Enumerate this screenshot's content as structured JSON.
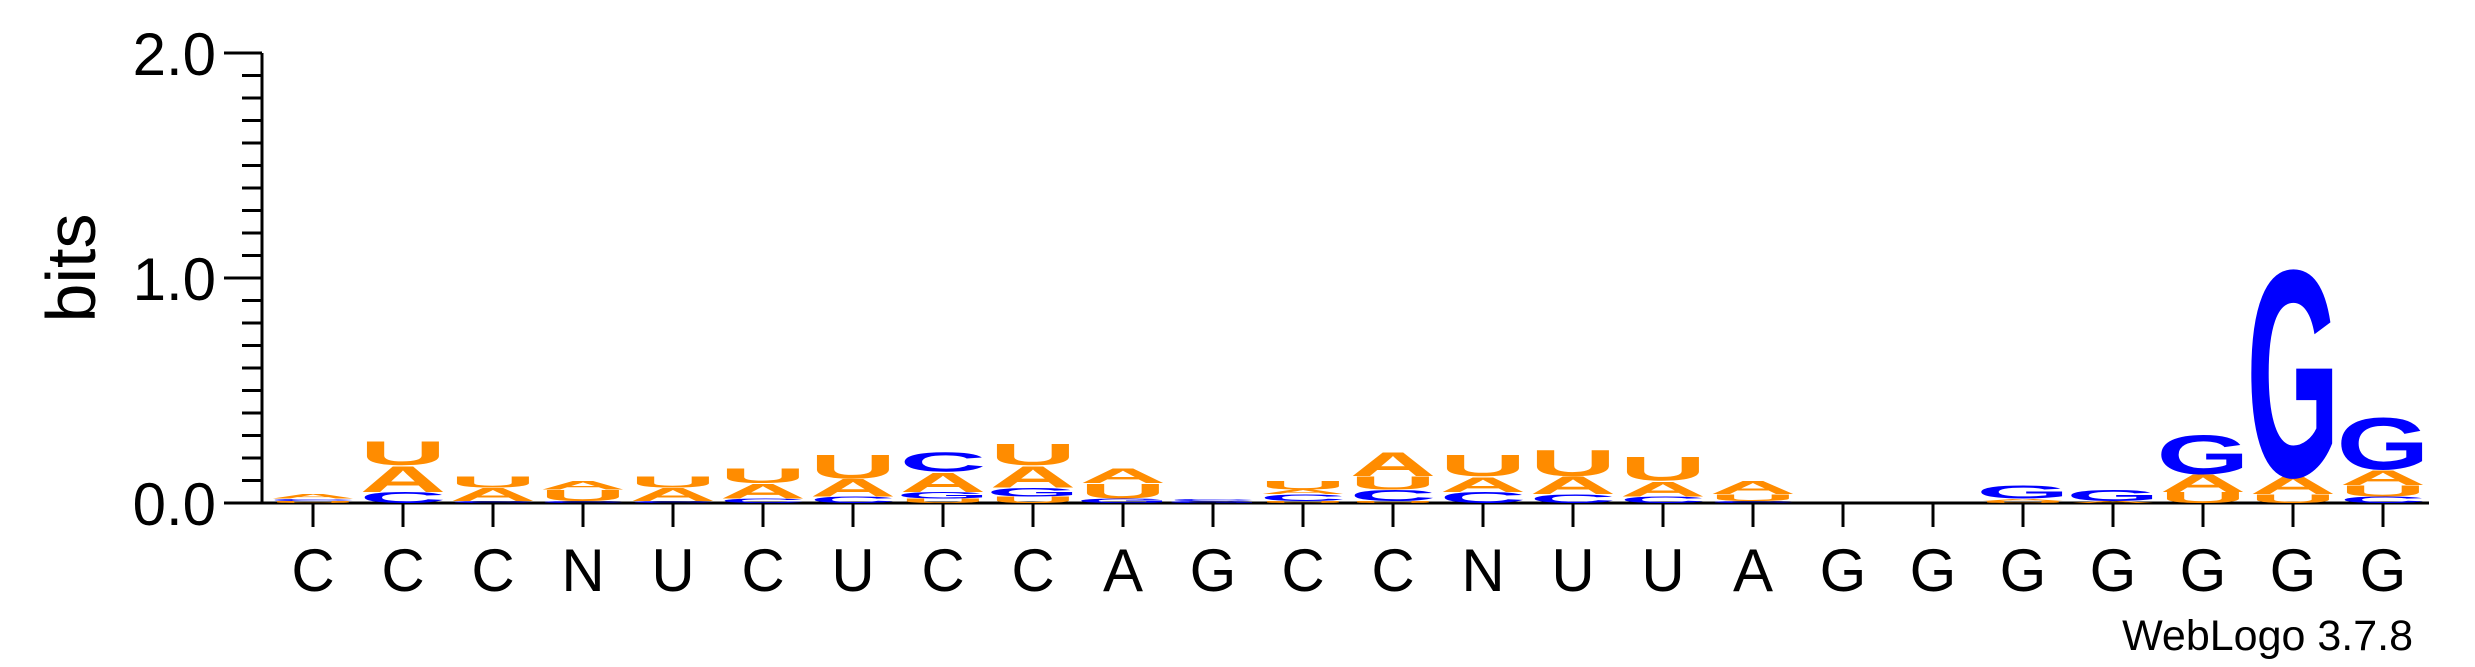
{
  "chart_data": {
    "type": "sequence_logo",
    "ylabel": "bits",
    "ylim": [
      0,
      2.0
    ],
    "yticks": [
      {
        "value": 0.0,
        "label": "0.0"
      },
      {
        "value": 1.0,
        "label": "1.0"
      },
      {
        "value": 2.0,
        "label": "2.0"
      }
    ],
    "credit": "WebLogo 3.7.8",
    "colors": {
      "A": "#ff8c00",
      "U": "#ff8c00",
      "C": "#0000ff",
      "G": "#0000ff"
    },
    "positions": [
      {
        "label": "C",
        "stack": [
          [
            "U",
            0.01
          ],
          [
            "C",
            0.01
          ],
          [
            "A",
            0.02
          ]
        ]
      },
      {
        "label": "C",
        "stack": [
          [
            "C",
            0.05
          ],
          [
            "A",
            0.12
          ],
          [
            "U",
            0.11
          ]
        ]
      },
      {
        "label": "C",
        "stack": [
          [
            "C",
            0.01
          ],
          [
            "A",
            0.06
          ],
          [
            "U",
            0.05
          ]
        ]
      },
      {
        "label": "N",
        "stack": [
          [
            "C",
            0.01
          ],
          [
            "U",
            0.05
          ],
          [
            "A",
            0.04
          ]
        ]
      },
      {
        "label": "U",
        "stack": [
          [
            "C",
            0.01
          ],
          [
            "A",
            0.06
          ],
          [
            "U",
            0.05
          ]
        ]
      },
      {
        "label": "C",
        "stack": [
          [
            "C",
            0.02
          ],
          [
            "A",
            0.07
          ],
          [
            "U",
            0.07
          ]
        ]
      },
      {
        "label": "U",
        "stack": [
          [
            "C",
            0.03
          ],
          [
            "A",
            0.08
          ],
          [
            "U",
            0.11
          ]
        ]
      },
      {
        "label": "C",
        "stack": [
          [
            "U",
            0.02
          ],
          [
            "G",
            0.03
          ],
          [
            "A",
            0.09
          ],
          [
            "C",
            0.09
          ]
        ]
      },
      {
        "label": "C",
        "stack": [
          [
            "U",
            0.03
          ],
          [
            "G",
            0.04
          ],
          [
            "A",
            0.1
          ],
          [
            "U",
            0.1
          ]
        ]
      },
      {
        "label": "A",
        "stack": [
          [
            "G",
            0.02
          ],
          [
            "U",
            0.07
          ],
          [
            "A",
            0.07
          ]
        ]
      },
      {
        "label": "G",
        "stack": [
          [
            "G",
            0.01
          ],
          [
            "C",
            0.01
          ]
        ]
      },
      {
        "label": "C",
        "stack": [
          [
            "U",
            0.01
          ],
          [
            "C",
            0.03
          ],
          [
            "A",
            0.02
          ],
          [
            "U",
            0.04
          ]
        ]
      },
      {
        "label": "C",
        "stack": [
          [
            "U",
            0.01
          ],
          [
            "C",
            0.05
          ],
          [
            "U",
            0.06
          ],
          [
            "A",
            0.11
          ]
        ]
      },
      {
        "label": "N",
        "stack": [
          [
            "C",
            0.05
          ],
          [
            "A",
            0.07
          ],
          [
            "U",
            0.1
          ]
        ]
      },
      {
        "label": "U",
        "stack": [
          [
            "C",
            0.04
          ],
          [
            "A",
            0.08
          ],
          [
            "U",
            0.12
          ]
        ]
      },
      {
        "label": "U",
        "stack": [
          [
            "C",
            0.03
          ],
          [
            "A",
            0.07
          ],
          [
            "U",
            0.11
          ]
        ]
      },
      {
        "label": "A",
        "stack": [
          [
            "C",
            0.01
          ],
          [
            "U",
            0.03
          ],
          [
            "A",
            0.06
          ]
        ]
      },
      {
        "label": "G",
        "stack": []
      },
      {
        "label": "G",
        "stack": []
      },
      {
        "label": "G",
        "stack": [
          [
            "U",
            0.01
          ],
          [
            "A",
            0.01
          ],
          [
            "G",
            0.06
          ]
        ]
      },
      {
        "label": "G",
        "stack": [
          [
            "A",
            0.01
          ],
          [
            "G",
            0.05
          ]
        ]
      },
      {
        "label": "G",
        "stack": [
          [
            "U",
            0.05
          ],
          [
            "A",
            0.08
          ],
          [
            "G",
            0.18
          ]
        ]
      },
      {
        "label": "G",
        "stack": [
          [
            "U",
            0.04
          ],
          [
            "A",
            0.08
          ],
          [
            "G",
            0.96
          ]
        ]
      },
      {
        "label": "G",
        "stack": [
          [
            "C",
            0.03
          ],
          [
            "U",
            0.05
          ],
          [
            "A",
            0.07
          ],
          [
            "G",
            0.24
          ]
        ]
      }
    ]
  }
}
